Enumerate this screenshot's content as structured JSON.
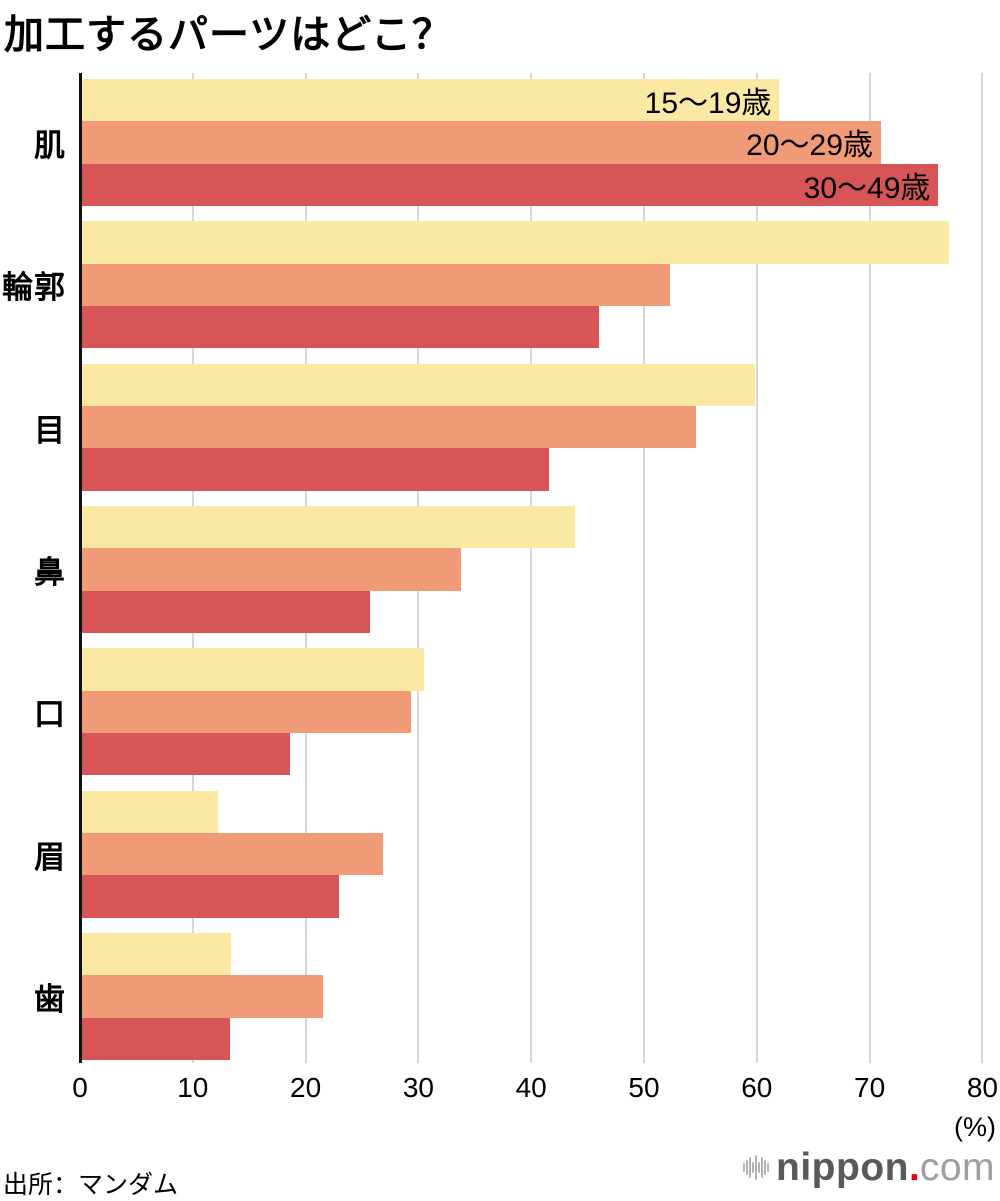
{
  "title": "加工するパーツはどこ？",
  "source": "出所：マンダム",
  "axis": {
    "ticks": [
      0,
      10,
      20,
      30,
      40,
      50,
      60,
      70,
      80
    ],
    "unit_label": "(%)",
    "max": 80
  },
  "colors": {
    "series_15_19": "#FBE9A3",
    "series_20_29": "#F19A78",
    "series_30_49": "#D75457",
    "gridline": "#d7d7d7",
    "axis_line": "#111111"
  },
  "logo": {
    "icon": "audio-wave-icon",
    "name": "nippon",
    "dot": ".",
    "tld": "com"
  },
  "chart_data": {
    "type": "bar",
    "orientation": "horizontal",
    "title": "加工するパーツはどこ？",
    "categories": [
      "肌",
      "輪郭",
      "目",
      "鼻",
      "口",
      "眉",
      "歯"
    ],
    "series": [
      {
        "name": "15〜19歳",
        "color": "#FBE9A3",
        "values": [
          62.0,
          77.0,
          59.8,
          43.9,
          30.5,
          12.2,
          13.4
        ]
      },
      {
        "name": "20〜29歳",
        "color": "#F19A78",
        "values": [
          71.0,
          52.3,
          54.6,
          33.8,
          29.3,
          26.9,
          21.5
        ]
      },
      {
        "name": "30〜49歳",
        "color": "#D75457",
        "values": [
          76.1,
          46.0,
          41.6,
          25.7,
          18.6,
          23.0,
          13.3
        ]
      }
    ],
    "xlim": [
      0,
      80
    ],
    "xlabel": "(%)",
    "grid": true,
    "legend_position": "labels-inside-first-category-bars",
    "source": "出所：マンダム"
  }
}
